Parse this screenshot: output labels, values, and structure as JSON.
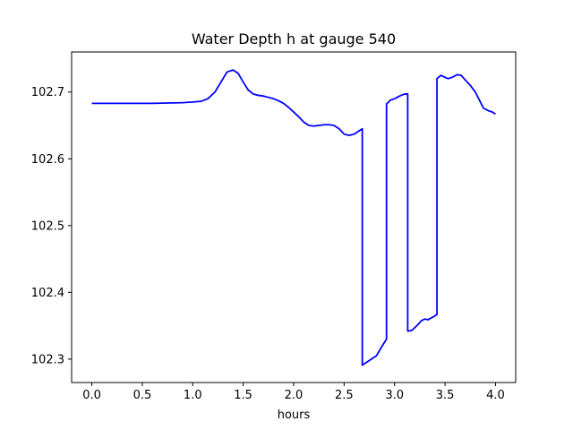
{
  "chart_data": {
    "type": "line",
    "title": "Water Depth h at gauge 540",
    "xlabel": "hours",
    "ylabel": "",
    "xlim": [
      -0.2,
      4.2
    ],
    "ylim": [
      102.265,
      102.76
    ],
    "xticks": [
      0.0,
      0.5,
      1.0,
      1.5,
      2.0,
      2.5,
      3.0,
      3.5,
      4.0
    ],
    "xtick_labels": [
      "0.0",
      "0.5",
      "1.0",
      "1.5",
      "2.0",
      "2.5",
      "3.0",
      "3.5",
      "4.0"
    ],
    "yticks": [
      102.3,
      102.4,
      102.5,
      102.6,
      102.7
    ],
    "ytick_labels": [
      "102.3",
      "102.4",
      "102.5",
      "102.6",
      "102.7"
    ],
    "grid": false,
    "legend": "none",
    "series": [
      {
        "color": "#0000ff",
        "x": [
          0.0,
          0.3,
          0.6,
          0.9,
          1.0,
          1.08,
          1.15,
          1.22,
          1.28,
          1.34,
          1.4,
          1.45,
          1.5,
          1.55,
          1.6,
          1.65,
          1.7,
          1.75,
          1.8,
          1.85,
          1.9,
          1.95,
          2.0,
          2.05,
          2.1,
          2.15,
          2.2,
          2.25,
          2.3,
          2.35,
          2.4,
          2.45,
          2.5,
          2.55,
          2.6,
          2.65,
          2.68,
          2.68,
          2.75,
          2.82,
          2.87,
          2.92,
          2.92,
          2.96,
          3.0,
          3.05,
          3.1,
          3.13,
          3.13,
          3.17,
          3.22,
          3.27,
          3.3,
          3.33,
          3.38,
          3.42,
          3.42,
          3.46,
          3.5,
          3.53,
          3.57,
          3.62,
          3.66,
          3.7,
          3.75,
          3.8,
          3.84,
          3.88,
          3.93,
          3.97,
          4.0
        ],
        "y": [
          102.683,
          102.683,
          102.683,
          102.684,
          102.685,
          102.686,
          102.69,
          102.7,
          102.715,
          102.73,
          102.733,
          102.728,
          102.715,
          102.703,
          102.697,
          102.695,
          102.694,
          102.692,
          102.69,
          102.687,
          102.683,
          102.677,
          102.67,
          102.663,
          102.655,
          102.65,
          102.649,
          102.65,
          102.651,
          102.651,
          102.65,
          102.645,
          102.637,
          102.635,
          102.637,
          102.642,
          102.645,
          102.291,
          102.298,
          102.305,
          102.318,
          102.33,
          102.682,
          102.688,
          102.69,
          102.694,
          102.697,
          102.697,
          102.342,
          102.343,
          102.35,
          102.358,
          102.36,
          102.359,
          102.363,
          102.367,
          102.72,
          102.725,
          102.722,
          102.72,
          102.722,
          102.726,
          102.725,
          102.718,
          102.71,
          102.7,
          102.688,
          102.676,
          102.672,
          102.67,
          102.667
        ]
      }
    ]
  }
}
